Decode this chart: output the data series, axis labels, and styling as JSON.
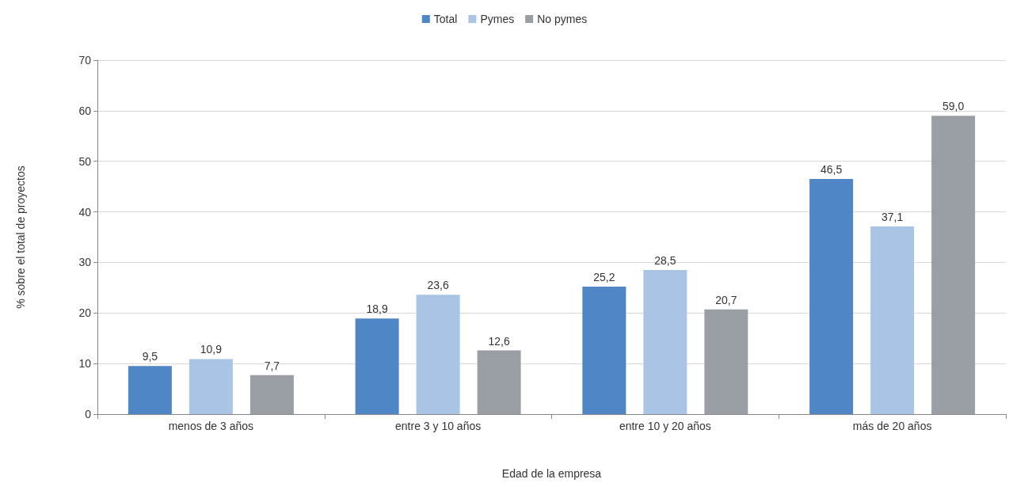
{
  "chart_data": {
    "type": "bar",
    "xlabel": "Edad de la empresa",
    "ylabel": "% sobre el total de proyectos",
    "categories": [
      "menos de 3 años",
      "entre 3 y 10 años",
      "entre 10 y 20 años",
      "más de 20 años"
    ],
    "series": [
      {
        "name": "Total",
        "color": "#4f86c6",
        "values": [
          9.5,
          18.9,
          25.2,
          46.5
        ],
        "value_labels": [
          "9,5",
          "18,9",
          "25,2",
          "46,5"
        ]
      },
      {
        "name": "Pymes",
        "color": "#a9c4e4",
        "values": [
          10.9,
          23.6,
          28.5,
          37.1
        ],
        "value_labels": [
          "10,9",
          "23,6",
          "28,5",
          "37,1"
        ]
      },
      {
        "name": "No pymes",
        "color": "#9a9fa5",
        "values": [
          7.7,
          12.6,
          20.7,
          59.0
        ],
        "value_labels": [
          "7,7",
          "12,6",
          "20,7",
          "59,0"
        ]
      }
    ],
    "ylim": [
      0,
      70
    ],
    "yticks": [
      0,
      10,
      20,
      30,
      40,
      50,
      60,
      70
    ],
    "grid": "y",
    "legend": "top"
  }
}
